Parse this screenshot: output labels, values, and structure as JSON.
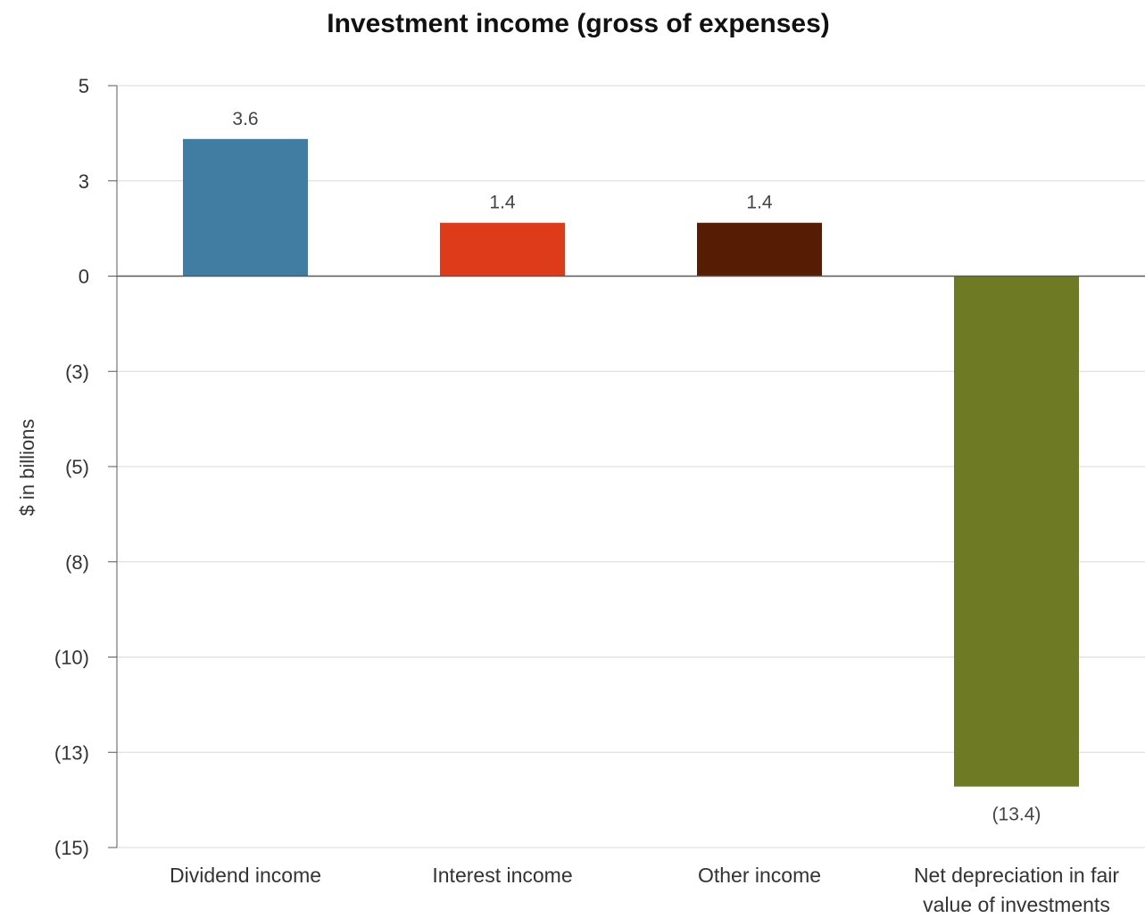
{
  "chart_data": {
    "type": "bar",
    "title": "Investment income (gross of expenses)",
    "ylabel": "$ in billions",
    "xlabel": "",
    "categories": [
      [
        "Dividend income"
      ],
      [
        "Interest income"
      ],
      [
        "Other income"
      ],
      [
        "Net depreciation in fair",
        "value of investments"
      ]
    ],
    "values": [
      3.6,
      1.4,
      1.4,
      -13.4
    ],
    "data_labels": [
      "3.6",
      "1.4",
      "1.4",
      "(13.4)"
    ],
    "colors": [
      "#417da2",
      "#de3b1a",
      "#561d04",
      "#6f7b24"
    ],
    "ylim": [
      -15,
      5
    ],
    "yticks": [
      {
        "value": 5,
        "label": "5"
      },
      {
        "value": 2.5,
        "label": "3"
      },
      {
        "value": 0,
        "label": "0"
      },
      {
        "value": -2.5,
        "label": "(3)"
      },
      {
        "value": -5,
        "label": "(5)"
      },
      {
        "value": -7.5,
        "label": "(8)"
      },
      {
        "value": -10,
        "label": "(10)"
      },
      {
        "value": -12.5,
        "label": "(13)"
      },
      {
        "value": -15,
        "label": "(15)"
      }
    ],
    "grid": true,
    "grid_color": "#d9d9d9",
    "axis_color": "#595959"
  }
}
